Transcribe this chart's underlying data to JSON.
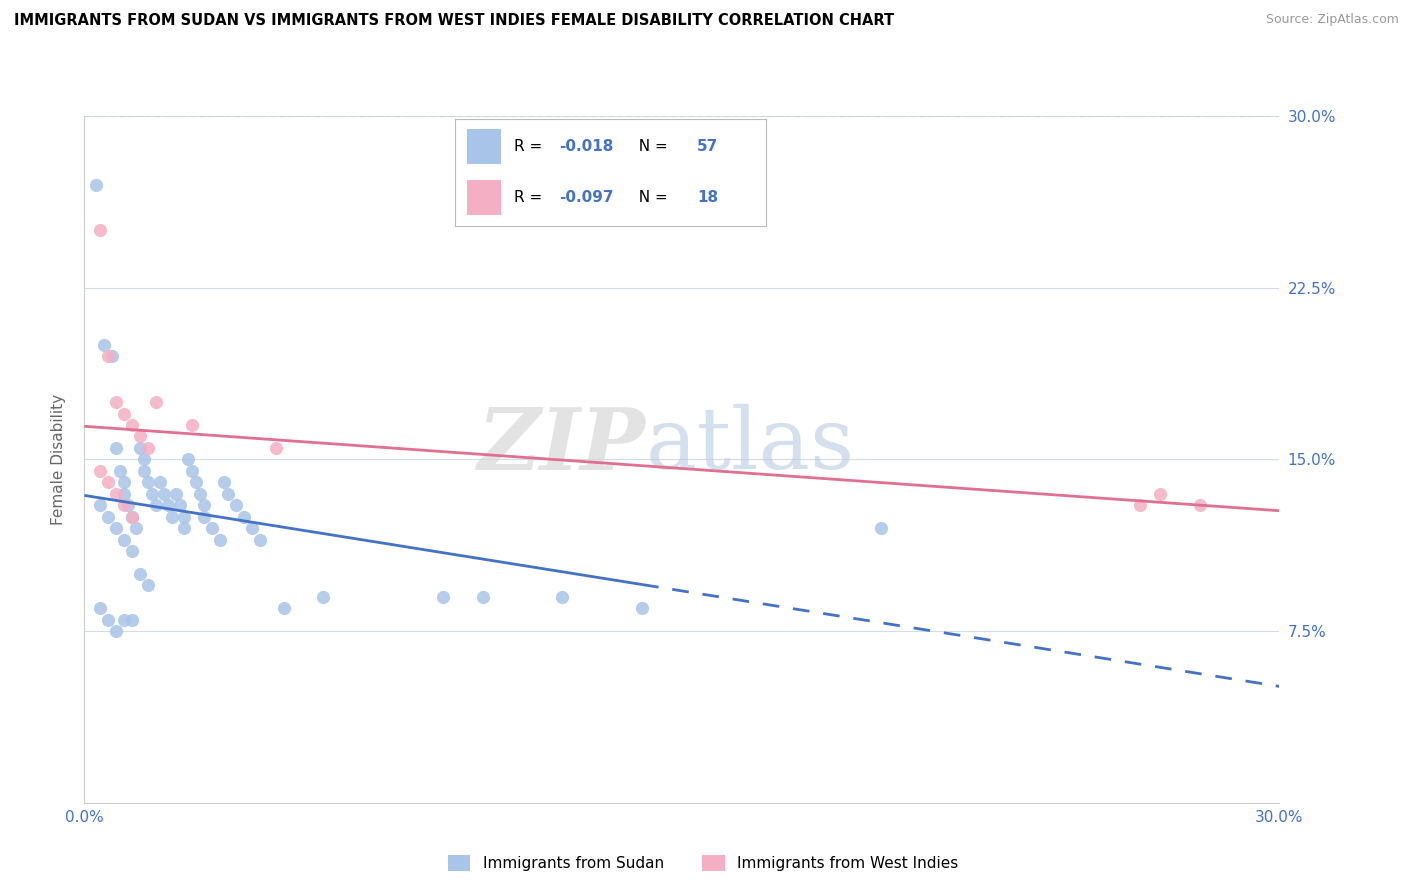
{
  "title": "IMMIGRANTS FROM SUDAN VS IMMIGRANTS FROM WEST INDIES FEMALE DISABILITY CORRELATION CHART",
  "source": "Source: ZipAtlas.com",
  "ylabel": "Female Disability",
  "xlim": [
    0.0,
    0.3
  ],
  "ylim": [
    0.0,
    0.3
  ],
  "ytick_vals": [
    0.075,
    0.15,
    0.225,
    0.3
  ],
  "ytick_labels_right": [
    "7.5%",
    "15.0%",
    "22.5%",
    "30.0%"
  ],
  "xtick_vals": [
    0.0,
    0.075,
    0.15,
    0.225,
    0.3
  ],
  "xtick_labels": [
    "0.0%",
    "",
    "",
    "",
    "30.0%"
  ],
  "legend1_R": "-0.018",
  "legend1_N": "57",
  "legend2_R": "-0.097",
  "legend2_N": "18",
  "legend_footer1": "Immigrants from Sudan",
  "legend_footer2": "Immigrants from West Indies",
  "blue_scatter_color": "#a8c4e8",
  "pink_scatter_color": "#f4afc4",
  "blue_line_color": "#4472c4",
  "pink_line_color": "#e07090",
  "axis_color": "#4472c4",
  "grid_color": "#d0dcea",
  "grid_dash_color": "#c8d4e4",
  "blue_x": [
    0.003,
    0.005,
    0.007,
    0.008,
    0.009,
    0.01,
    0.01,
    0.011,
    0.012,
    0.013,
    0.014,
    0.015,
    0.015,
    0.016,
    0.017,
    0.018,
    0.019,
    0.02,
    0.021,
    0.022,
    0.023,
    0.024,
    0.025,
    0.025,
    0.026,
    0.027,
    0.028,
    0.029,
    0.03,
    0.03,
    0.032,
    0.034,
    0.035,
    0.036,
    0.038,
    0.04,
    0.042,
    0.044,
    0.004,
    0.006,
    0.008,
    0.01,
    0.012,
    0.014,
    0.016,
    0.05,
    0.06,
    0.09,
    0.1,
    0.12,
    0.14,
    0.2,
    0.004,
    0.006,
    0.008,
    0.01,
    0.012
  ],
  "blue_y": [
    0.27,
    0.2,
    0.195,
    0.155,
    0.145,
    0.14,
    0.135,
    0.13,
    0.125,
    0.12,
    0.155,
    0.15,
    0.145,
    0.14,
    0.135,
    0.13,
    0.14,
    0.135,
    0.13,
    0.125,
    0.135,
    0.13,
    0.125,
    0.12,
    0.15,
    0.145,
    0.14,
    0.135,
    0.13,
    0.125,
    0.12,
    0.115,
    0.14,
    0.135,
    0.13,
    0.125,
    0.12,
    0.115,
    0.13,
    0.125,
    0.12,
    0.115,
    0.11,
    0.1,
    0.095,
    0.085,
    0.09,
    0.09,
    0.09,
    0.09,
    0.085,
    0.12,
    0.085,
    0.08,
    0.075,
    0.08,
    0.08
  ],
  "pink_x": [
    0.004,
    0.006,
    0.008,
    0.01,
    0.012,
    0.014,
    0.016,
    0.018,
    0.004,
    0.006,
    0.008,
    0.01,
    0.012,
    0.027,
    0.048,
    0.27,
    0.28,
    0.265
  ],
  "pink_y": [
    0.25,
    0.195,
    0.175,
    0.17,
    0.165,
    0.16,
    0.155,
    0.175,
    0.145,
    0.14,
    0.135,
    0.13,
    0.125,
    0.165,
    0.155,
    0.135,
    0.13,
    0.13
  ],
  "blue_line_start_x": 0.0,
  "blue_line_solid_end_x": 0.14,
  "blue_line_dash_end_x": 0.3,
  "pink_line_start_x": 0.0,
  "pink_line_end_x": 0.3
}
